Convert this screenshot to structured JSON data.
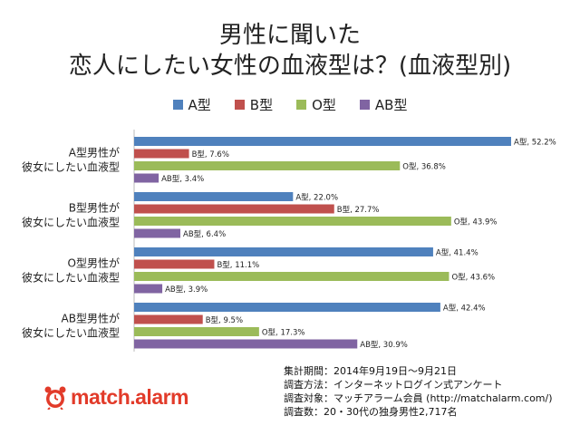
{
  "title_lines": [
    "男性に聞いた",
    "恋人にしたい女性の血液型は？(血液型別)"
  ],
  "logo": {
    "text": "match.alarm",
    "icon": "alarm-clock-icon"
  },
  "notes": [
    "集計期間：2014年9月19日〜9月21日",
    "調査方法：インターネットログイン式アンケート",
    "調査対象：マッチアラーム会員 (http://matchalarm.com/)",
    "調査数：20・30代の独身男性2,717名"
  ],
  "chart_data": {
    "type": "bar",
    "orientation": "horizontal",
    "title": "男性に聞いた 恋人にしたい女性の血液型は？(血液型別)",
    "categories": [
      [
        "A型男性が",
        "彼女にしたい血液型"
      ],
      [
        "B型男性が",
        "彼女にしたい血液型"
      ],
      [
        "O型男性が",
        "彼女にしたい血液型"
      ],
      [
        "AB型男性が",
        "彼女にしたい血液型"
      ]
    ],
    "series": [
      {
        "name": "A型",
        "color": "#4f81bd",
        "values": [
          52.2,
          22.0,
          41.4,
          42.4
        ]
      },
      {
        "name": "B型",
        "color": "#c0504d",
        "values": [
          7.6,
          27.7,
          11.1,
          9.5
        ]
      },
      {
        "name": "O型",
        "color": "#9bbb59",
        "values": [
          36.8,
          43.9,
          43.6,
          17.3
        ]
      },
      {
        "name": "AB型",
        "color": "#8064a2",
        "values": [
          3.4,
          6.4,
          3.9,
          30.9
        ]
      }
    ],
    "data_labels": [
      [
        "A型, 52.2%",
        "A型, 22.0%",
        "A型, 41.4%",
        "A型, 42.4%"
      ],
      [
        "B型, 7.6%",
        "B型, 27.7%",
        "B型, 11.1%",
        "B型, 9.5%"
      ],
      [
        "O型, 36.8%",
        "O型, 43.9%",
        "O型, 43.6%",
        "O型, 17.3%"
      ],
      [
        "AB型, 3.4%",
        "AB型, 6.4%",
        "AB型, 3.9%",
        "AB型, 30.9%"
      ]
    ],
    "xlim": [
      0,
      52.2
    ],
    "legend_position": "top",
    "grid": false
  }
}
